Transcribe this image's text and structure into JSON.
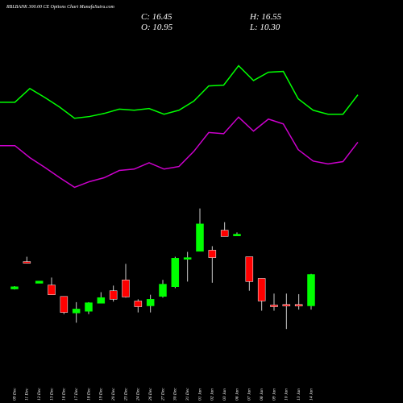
{
  "chart_data": {
    "type": "candlestick",
    "title": "RBLBANK 300.00 CE Options Chart MunafaSutra.com",
    "ohlc_labels": [
      "C: 16.45",
      "H: 16.55",
      "O: 10.95",
      "L: 10.30"
    ],
    "categories": [
      "09 Dec",
      "11 Dec",
      "12 Dec",
      "13 Dec",
      "16 Dec",
      "17 Dec",
      "18 Dec",
      "19 Dec",
      "20 Dec",
      "23 Dec",
      "24 Dec",
      "26 Dec",
      "27 Dec",
      "30 Dec",
      "31 Dec",
      "01 Jan",
      "02 Jan",
      "03 Jan",
      "06 Jan",
      "07 Jan",
      "08 Jan",
      "09 Jan",
      "10 Jan",
      "13 Jan",
      "14 Jan"
    ],
    "open": [
      13.9,
      18.7,
      14.9,
      14.6,
      12.6,
      9.7,
      10.0,
      11.4,
      13.6,
      15.5,
      11.8,
      10.95,
      12.6,
      14.3,
      19.1,
      20.5,
      20.7,
      24.2,
      23.2,
      19.55,
      15.75,
      11.1,
      11.2,
      11.2,
      10.95
    ],
    "high": [
      14.4,
      19.55,
      15.3,
      15.9,
      12.6,
      11.6,
      11.6,
      13.35,
      14.5,
      18.3,
      12.1,
      12.9,
      15.5,
      19.55,
      20.4,
      28.0,
      21.4,
      25.6,
      23.8,
      19.55,
      15.75,
      13.1,
      13.1,
      13.0,
      16.55
    ],
    "low": [
      13.8,
      18.4,
      14.9,
      12.9,
      9.5,
      8.0,
      9.5,
      11.4,
      11.7,
      12.4,
      9.8,
      9.8,
      12.4,
      14.05,
      15.2,
      20.5,
      15.0,
      23.1,
      23.2,
      13.6,
      10.1,
      10.1,
      6.9,
      10.3,
      10.3
    ],
    "close": [
      14.3,
      18.6,
      15.3,
      12.9,
      9.8,
      10.4,
      11.5,
      12.4,
      12.1,
      12.5,
      10.8,
      12.1,
      14.75,
      19.3,
      19.4,
      25.3,
      19.4,
      23.1,
      23.5,
      15.2,
      11.8,
      10.8,
      10.95,
      10.95,
      16.45
    ],
    "up_color": "#00ff00",
    "down_color": "#ff0000",
    "ylim": [
      1,
      64.5
    ],
    "overlays": [
      {
        "color": "#00ff00",
        "values": [
          46.6,
          46.6,
          49.0,
          47.45,
          45.75,
          43.8,
          44.1,
          44.65,
          45.4,
          45.2,
          45.5,
          44.5,
          45.2,
          46.8,
          49.45,
          49.6,
          53.0,
          50.4,
          51.85,
          52.0,
          47.2,
          45.2,
          44.5,
          44.5,
          47.9
        ]
      },
      {
        "color": "#cc00cc",
        "values": [
          39.0,
          39.0,
          36.9,
          35.2,
          33.4,
          31.7,
          32.7,
          33.4,
          34.65,
          34.9,
          36.0,
          34.9,
          35.35,
          38.0,
          41.3,
          41.1,
          44.0,
          41.55,
          43.65,
          42.8,
          38.3,
          36.3,
          35.8,
          36.2,
          39.6
        ]
      }
    ]
  }
}
